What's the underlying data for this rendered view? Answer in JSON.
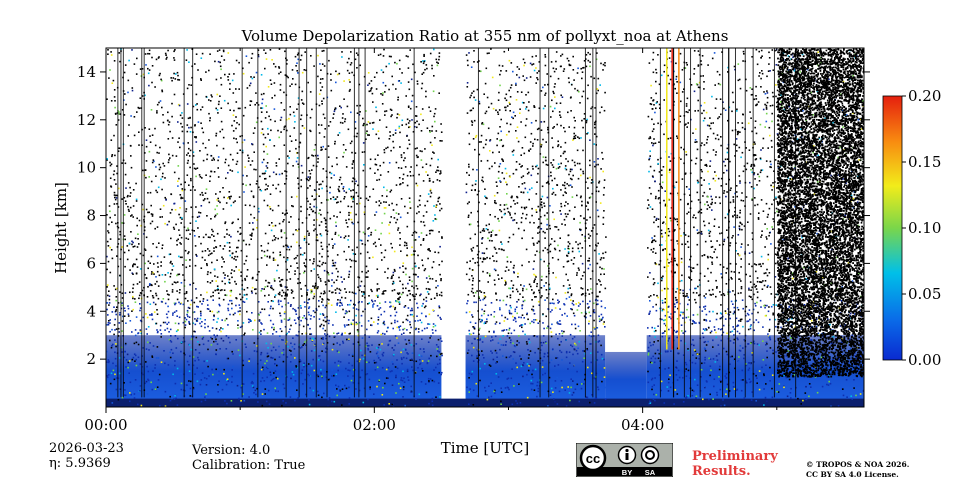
{
  "chart_data": {
    "type": "heatmap",
    "title": "Volume Depolarization Ratio at 355 nm of pollyxt_noa at Athens",
    "xlabel": "Time [UTC]",
    "ylabel": "Height [km]",
    "x_range_hours": [
      0,
      5.65
    ],
    "x_ticks": [
      {
        "hour": 0,
        "label": "00:00"
      },
      {
        "hour": 2,
        "label": "02:00"
      },
      {
        "hour": 4,
        "label": "04:00"
      }
    ],
    "x_minor_hours": [
      1,
      3,
      5
    ],
    "y_range_km": [
      0,
      15
    ],
    "y_ticks": [
      {
        "km": 2,
        "label": "2"
      },
      {
        "km": 4,
        "label": "4"
      },
      {
        "km": 6,
        "label": "6"
      },
      {
        "km": 8,
        "label": "8"
      },
      {
        "km": 10,
        "label": "10"
      },
      {
        "km": 12,
        "label": "12"
      },
      {
        "km": 14,
        "label": "14"
      }
    ],
    "colorbar": {
      "min": 0.0,
      "max": 0.2,
      "ticks": [
        {
          "value": 0.0,
          "label": "0.00"
        },
        {
          "value": 0.05,
          "label": "0.05"
        },
        {
          "value": 0.1,
          "label": "0.10"
        },
        {
          "value": 0.15,
          "label": "0.15"
        },
        {
          "value": 0.2,
          "label": "0.20"
        }
      ],
      "colormap": "jet"
    },
    "data_gaps_hours": [
      [
        2.5,
        2.68
      ],
      [
        3.72,
        4.03
      ]
    ],
    "features": {
      "dense_layer_top_km": 3.0,
      "noisy_signal_above_km": 5.0,
      "high_depol_streaks_hours": [
        4.18,
        4.22,
        4.27
      ]
    }
  },
  "footer": {
    "date": "2026-03-23",
    "eta": "η: 5.9369",
    "version": "Version: 4.0",
    "calibration": "Calibration: True",
    "preliminary_line1": "Preliminary",
    "preliminary_line2": "Results.",
    "copyright_line1": "© TROPOS & NOA 2026.",
    "copyright_line2": "CC BY SA 4.0 License."
  },
  "license_badge": {
    "cc": "cc",
    "by": "BY",
    "sa": "SA"
  }
}
